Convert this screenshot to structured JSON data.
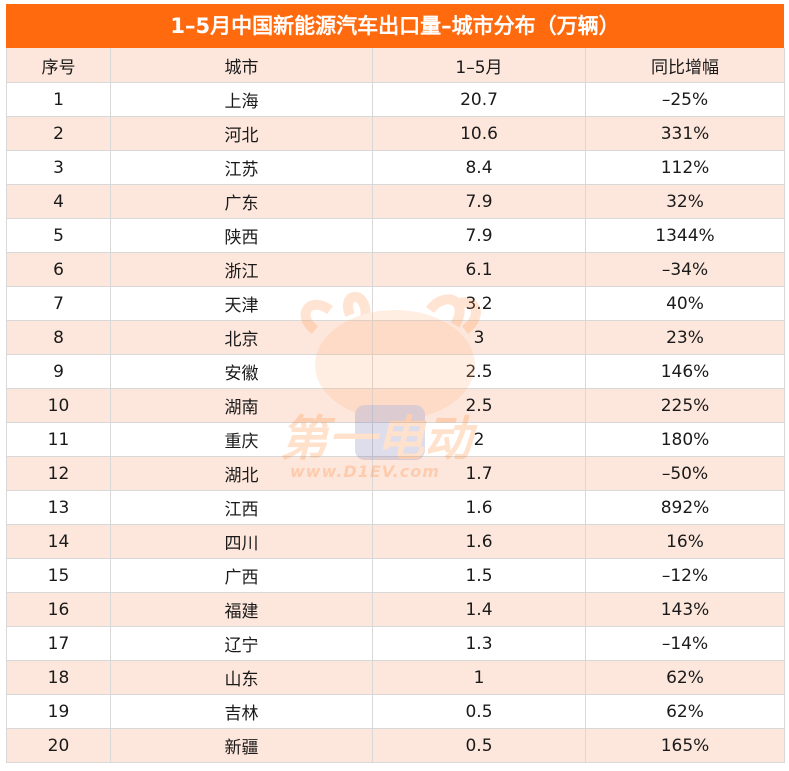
{
  "title": "1–5月中国新能源汽车出口量–城市分布（万辆）",
  "headers": [
    "序号",
    "城市",
    "1–5月",
    "同比增幅"
  ],
  "rows": [
    [
      "1",
      "上海",
      "20.7",
      "–25%"
    ],
    [
      "2",
      "河北",
      "10.6",
      "331%"
    ],
    [
      "3",
      "江苏",
      "8.4",
      "112%"
    ],
    [
      "4",
      "广东",
      "7.9",
      "32%"
    ],
    [
      "5",
      "陕西",
      "7.9",
      "1344%"
    ],
    [
      "6",
      "浙江",
      "6.1",
      "–34%"
    ],
    [
      "7",
      "天津",
      "3.2",
      "40%"
    ],
    [
      "8",
      "北京",
      "3",
      "23%"
    ],
    [
      "9",
      "安徽",
      "2.5",
      "146%"
    ],
    [
      "10",
      "湖南",
      "2.5",
      "225%"
    ],
    [
      "11",
      "重庆",
      "2",
      "180%"
    ],
    [
      "12",
      "湖北",
      "1.7",
      "–50%"
    ],
    [
      "13",
      "江西",
      "1.6",
      "892%"
    ],
    [
      "14",
      "四川",
      "1.6",
      "16%"
    ],
    [
      "15",
      "广西",
      "1.5",
      "–12%"
    ],
    [
      "16",
      "福建",
      "1.4",
      "143%"
    ],
    [
      "17",
      "辽宁",
      "1.3",
      "–14%"
    ],
    [
      "18",
      "山东",
      "1",
      "62%"
    ],
    [
      "19",
      "吉林",
      "0.5",
      "62%"
    ],
    [
      "20",
      "新疆",
      "0.5",
      "165%"
    ]
  ],
  "watermark": {
    "logo_text": "第一电动",
    "url_text": "www.D1EV.com"
  },
  "colors": {
    "title_bg": "#ff6a0f",
    "stripe": "#fde7dc"
  }
}
